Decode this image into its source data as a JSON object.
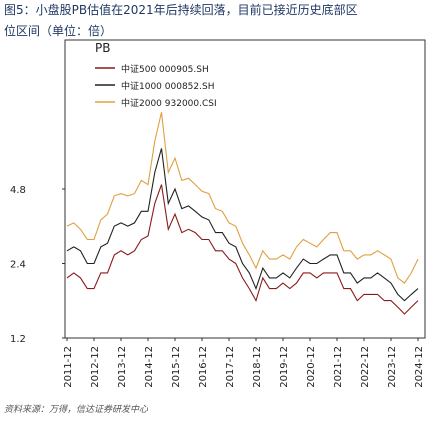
{
  "chart_data": {
    "type": "line",
    "title": [
      "图5：小盘股PB估值在2021年后持续回落，目前已接近历史底部区",
      "位区间（单位：倍）"
    ],
    "source": "资料来源：万得，信达证券研发中心",
    "legend_title": "PB",
    "legend": "upper left",
    "log_scale": true,
    "x": [
      "2011-12",
      "2012-03",
      "2012-06",
      "2012-09",
      "2012-12",
      "2013-03",
      "2013-06",
      "2013-09",
      "2013-12",
      "2014-03",
      "2014-06",
      "2014-09",
      "2014-12",
      "2015-03",
      "2015-06",
      "2015-09",
      "2015-12",
      "2016-03",
      "2016-06",
      "2016-09",
      "2016-12",
      "2017-03",
      "2017-06",
      "2017-09",
      "2017-12",
      "2018-03",
      "2018-06",
      "2018-09",
      "2018-12",
      "2019-03",
      "2019-06",
      "2019-09",
      "2019-12",
      "2020-03",
      "2020-06",
      "2020-09",
      "2020-12",
      "2021-03",
      "2021-06",
      "2021-09",
      "2021-12",
      "2022-03",
      "2022-06",
      "2022-09",
      "2022-12",
      "2023-03",
      "2023-06",
      "2023-09",
      "2023-12",
      "2024-03",
      "2024-06",
      "2024-09",
      "2024-12"
    ],
    "xticks": [
      "2011-12",
      "2012-12",
      "2013-12",
      "2014-12",
      "2015-12",
      "2016-12",
      "2017-12",
      "2018-12",
      "2019-12",
      "2020-12",
      "2021-12",
      "2022-12",
      "2023-12",
      "2024-12"
    ],
    "ylim": [
      1.2,
      19.2
    ],
    "yticks": [
      1.2,
      2.4,
      4.8
    ],
    "series": [
      {
        "name": "中证500 000905.SH",
        "color": "#8b1a1a",
        "values": [
          2.1,
          2.2,
          2.1,
          1.9,
          1.9,
          2.2,
          2.2,
          2.6,
          2.7,
          2.6,
          2.7,
          3.0,
          3.1,
          4.2,
          5.0,
          3.3,
          3.8,
          3.2,
          3.3,
          3.2,
          3.0,
          3.0,
          2.7,
          2.7,
          2.5,
          2.4,
          2.1,
          1.9,
          1.7,
          2.1,
          1.9,
          1.9,
          2.0,
          1.9,
          2.0,
          2.2,
          2.2,
          2.1,
          2.2,
          2.2,
          2.2,
          1.9,
          1.9,
          1.7,
          1.8,
          1.8,
          1.8,
          1.7,
          1.7,
          1.6,
          1.5,
          1.6,
          1.7
        ]
      },
      {
        "name": "中证1000 000852.SH",
        "color": "#222222",
        "values": [
          2.7,
          2.8,
          2.7,
          2.4,
          2.4,
          2.8,
          2.9,
          3.4,
          3.5,
          3.4,
          3.5,
          3.9,
          3.9,
          5.6,
          7.0,
          4.2,
          4.8,
          4.0,
          4.1,
          3.9,
          3.7,
          3.6,
          3.2,
          3.2,
          2.9,
          2.8,
          2.4,
          2.2,
          1.9,
          2.3,
          2.1,
          2.1,
          2.2,
          2.1,
          2.3,
          2.5,
          2.4,
          2.4,
          2.5,
          2.6,
          2.6,
          2.2,
          2.2,
          2.0,
          2.1,
          2.1,
          2.2,
          2.1,
          2.0,
          1.8,
          1.7,
          1.8,
          1.9
        ]
      },
      {
        "name": "中证2000 932000.CSI",
        "color": "#e0a040",
        "values": [
          3.4,
          3.5,
          3.3,
          3.0,
          3.0,
          3.6,
          3.8,
          4.5,
          4.6,
          4.5,
          4.6,
          5.2,
          5.0,
          7.5,
          9.8,
          5.6,
          6.4,
          5.2,
          5.3,
          5.0,
          4.7,
          4.6,
          4.0,
          3.9,
          3.5,
          3.4,
          2.9,
          2.6,
          2.3,
          2.7,
          2.5,
          2.5,
          2.6,
          2.5,
          2.8,
          3.0,
          2.9,
          2.8,
          3.0,
          3.2,
          3.2,
          2.7,
          2.7,
          2.5,
          2.6,
          2.6,
          2.7,
          2.6,
          2.5,
          2.1,
          2.0,
          2.2,
          2.5
        ]
      }
    ]
  }
}
